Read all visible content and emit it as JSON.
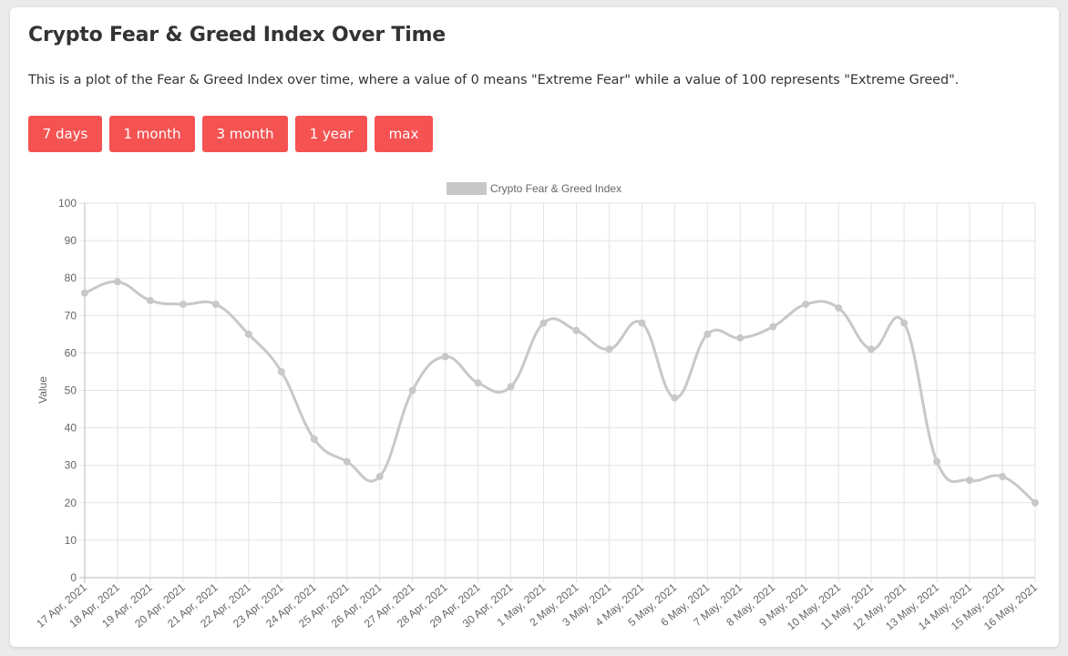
{
  "page": {
    "title": "Crypto Fear & Greed Index Over Time",
    "description": "This is a plot of the Fear & Greed Index over time, where a value of 0 means \"Extreme Fear\" while a value of 100 represents \"Extreme Greed\".",
    "buttons": [
      "7 days",
      "1 month",
      "3 month",
      "1 year",
      "max"
    ],
    "accent_color": "#f55252"
  },
  "chart_data": {
    "type": "line",
    "title": "",
    "xlabel": "",
    "ylabel": "Value",
    "ylim": [
      0,
      100
    ],
    "y_ticks": [
      0,
      10,
      20,
      30,
      40,
      50,
      60,
      70,
      80,
      90,
      100
    ],
    "legend": "top-center",
    "grid": true,
    "series_color": "#c8c8c8",
    "categories": [
      "17 Apr, 2021",
      "18 Apr, 2021",
      "19 Apr, 2021",
      "20 Apr, 2021",
      "21 Apr, 2021",
      "22 Apr, 2021",
      "23 Apr, 2021",
      "24 Apr, 2021",
      "25 Apr, 2021",
      "26 Apr, 2021",
      "27 Apr, 2021",
      "28 Apr, 2021",
      "29 Apr, 2021",
      "30 Apr, 2021",
      "1 May, 2021",
      "2 May, 2021",
      "3 May, 2021",
      "4 May, 2021",
      "5 May, 2021",
      "6 May, 2021",
      "7 May, 2021",
      "8 May, 2021",
      "9 May, 2021",
      "10 May, 2021",
      "11 May, 2021",
      "12 May, 2021",
      "13 May, 2021",
      "14 May, 2021",
      "15 May, 2021",
      "16 May, 2021"
    ],
    "series": [
      {
        "name": "Crypto Fear & Greed Index",
        "values": [
          76,
          79,
          74,
          73,
          73,
          65,
          55,
          37,
          31,
          27,
          50,
          59,
          52,
          51,
          68,
          66,
          61,
          68,
          48,
          65,
          64,
          67,
          73,
          72,
          61,
          68,
          31,
          26,
          27,
          20
        ]
      }
    ]
  }
}
